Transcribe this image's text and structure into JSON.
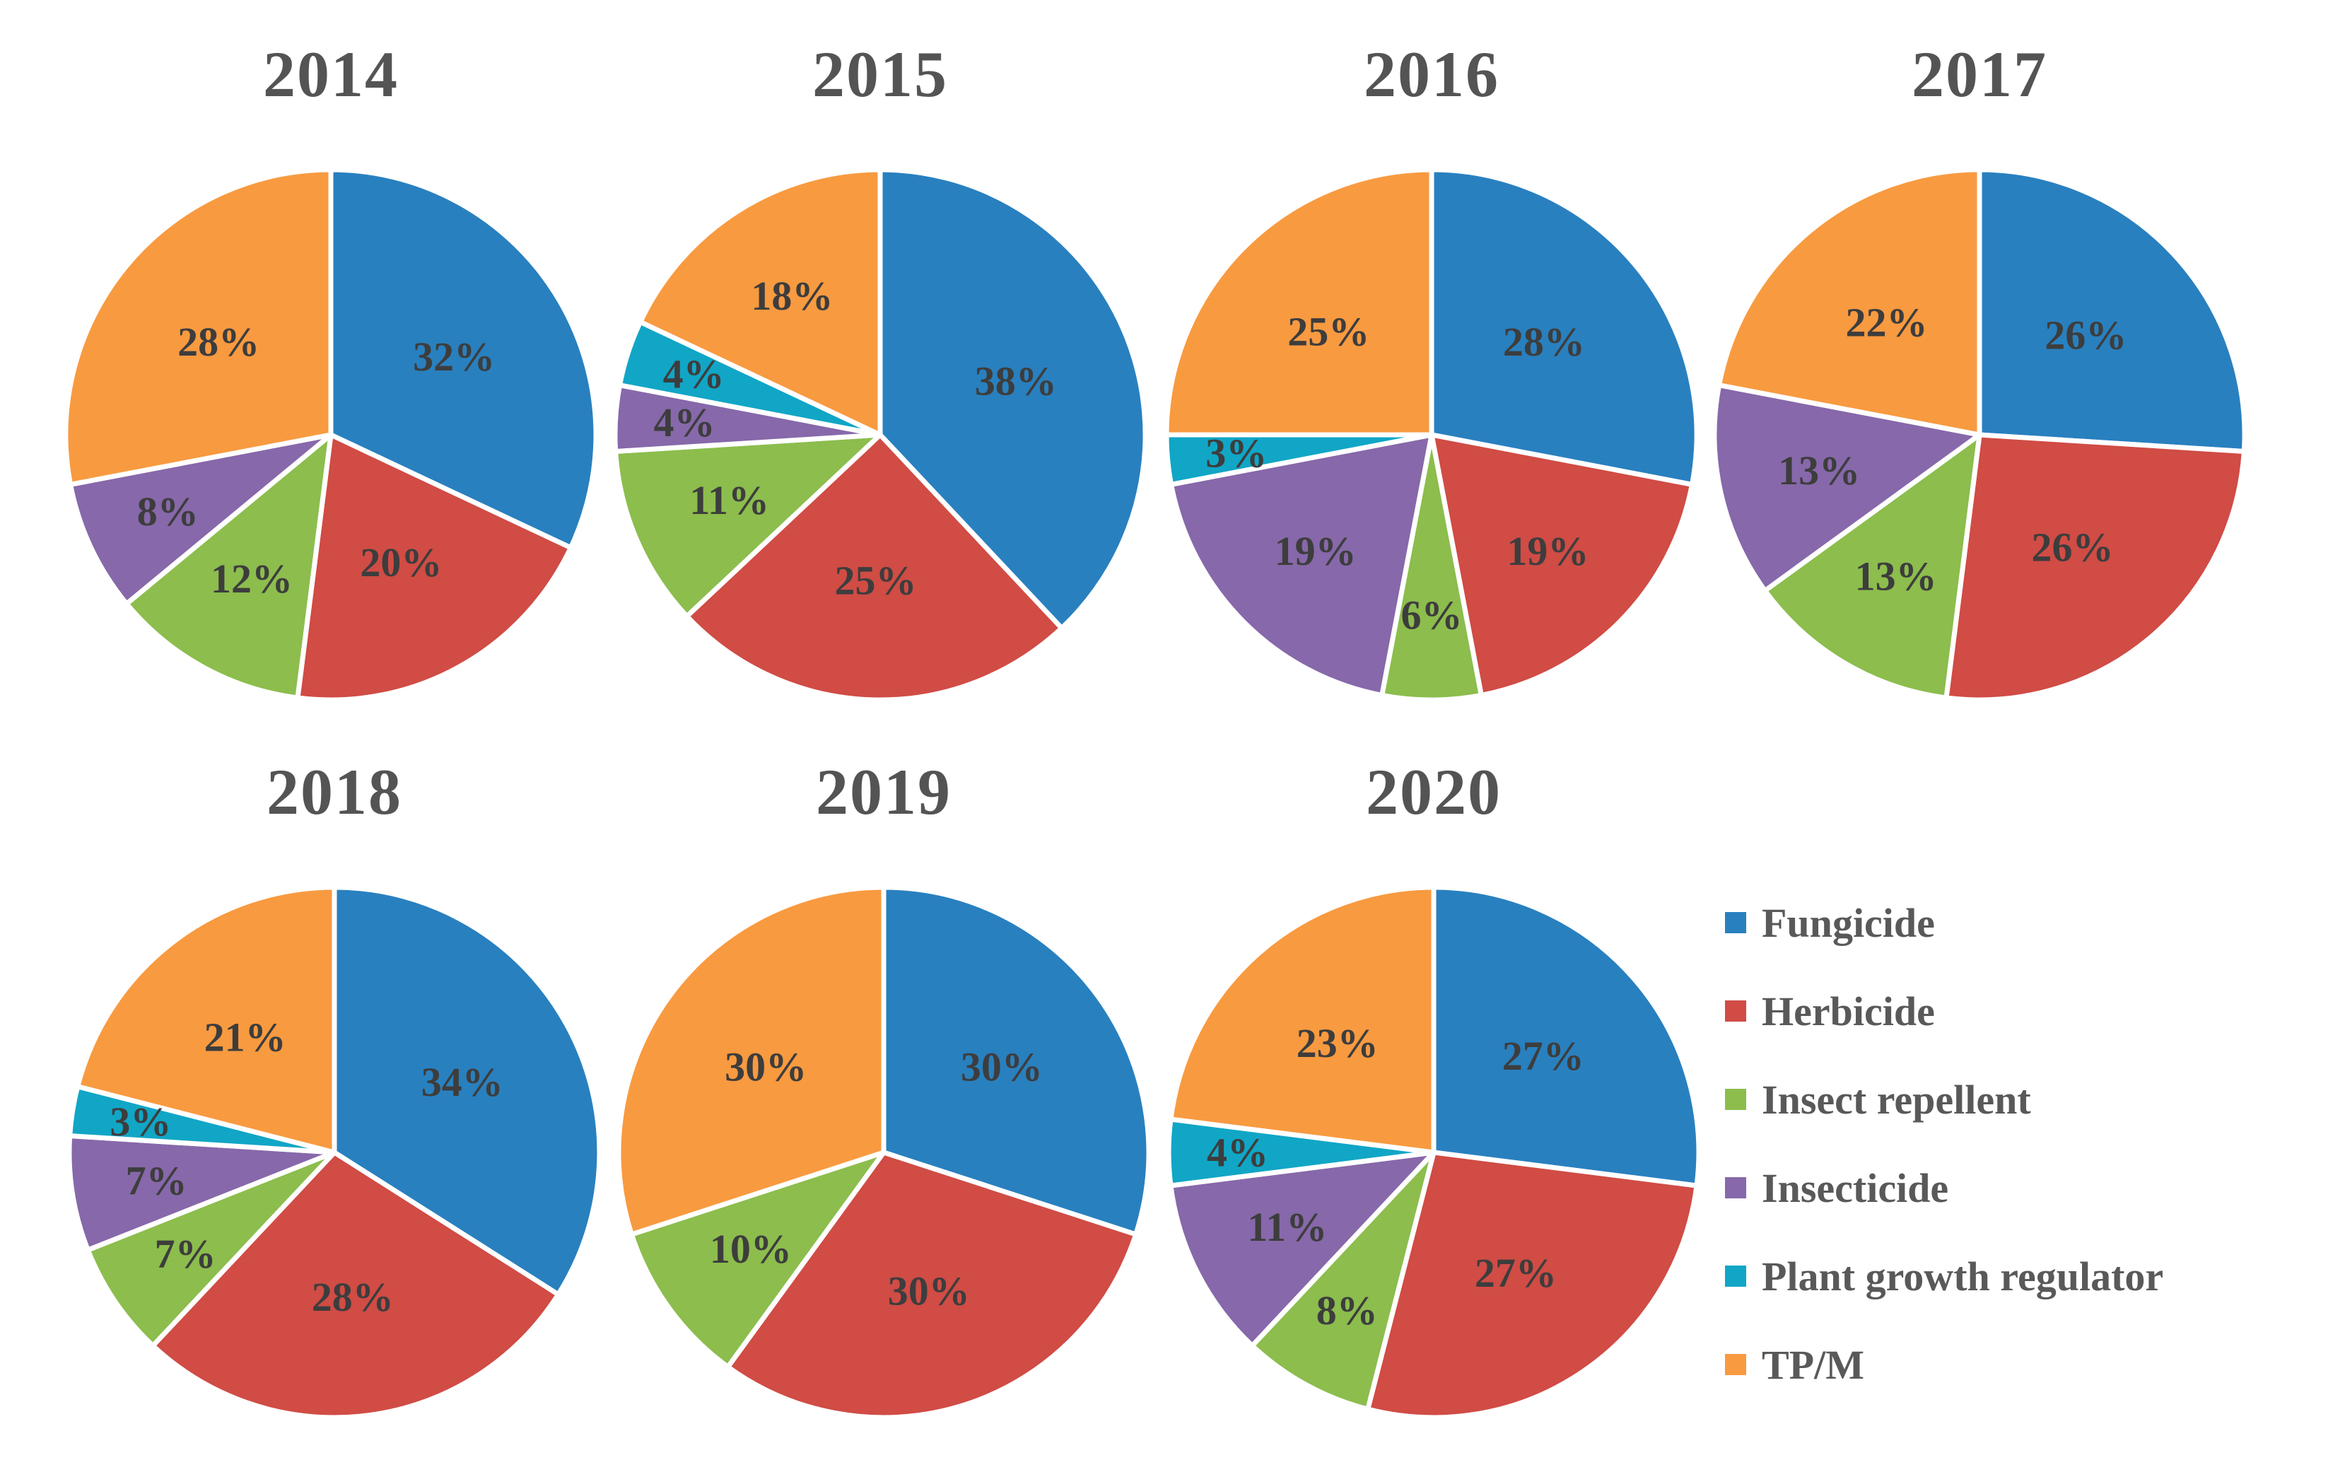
{
  "figure": {
    "background": "#ffffff",
    "title_color": "#545454",
    "label_color": "#3d3d3d",
    "legend_text_color": "#595959"
  },
  "legend": {
    "position": "right-bottom",
    "items": [
      {
        "label": "Fungicide",
        "color": "#2980BF"
      },
      {
        "label": "Herbicide",
        "color": "#D04C45"
      },
      {
        "label": "Insect repellent",
        "color": "#8CBD4D"
      },
      {
        "label": "Insecticide",
        "color": "#8768AA"
      },
      {
        "label": "Plant growth regulator",
        "color": "#11A6C6"
      },
      {
        "label": "TP/M",
        "color": "#F89A40"
      }
    ]
  },
  "chart_data": [
    {
      "type": "pie",
      "title": "2014",
      "unit": "%",
      "categories": [
        "Fungicide",
        "Herbicide",
        "Insect repellent",
        "Insecticide",
        "Plant growth regulator",
        "TP/M"
      ],
      "values": [
        32,
        20,
        12,
        8,
        0,
        28
      ],
      "start_angle_deg": 0,
      "direction": "clockwise"
    },
    {
      "type": "pie",
      "title": "2015",
      "unit": "%",
      "categories": [
        "Fungicide",
        "Herbicide",
        "Insect repellent",
        "Insecticide",
        "Plant growth regulator",
        "TP/M"
      ],
      "values": [
        38,
        25,
        11,
        4,
        4,
        18
      ],
      "start_angle_deg": 0,
      "direction": "clockwise"
    },
    {
      "type": "pie",
      "title": "2016",
      "unit": "%",
      "categories": [
        "Fungicide",
        "Herbicide",
        "Insect repellent",
        "Insecticide",
        "Plant growth regulator",
        "TP/M"
      ],
      "values": [
        28,
        19,
        6,
        19,
        3,
        25
      ],
      "start_angle_deg": 0,
      "direction": "clockwise"
    },
    {
      "type": "pie",
      "title": "2017",
      "unit": "%",
      "categories": [
        "Fungicide",
        "Herbicide",
        "Insect repellent",
        "Insecticide",
        "Plant growth regulator",
        "TP/M"
      ],
      "values": [
        26,
        26,
        13,
        13,
        0,
        22
      ],
      "start_angle_deg": 0,
      "direction": "clockwise"
    },
    {
      "type": "pie",
      "title": "2018",
      "unit": "%",
      "categories": [
        "Fungicide",
        "Herbicide",
        "Insect repellent",
        "Insecticide",
        "Plant growth regulator",
        "TP/M"
      ],
      "values": [
        34,
        28,
        7,
        7,
        3,
        21
      ],
      "start_angle_deg": 0,
      "direction": "clockwise"
    },
    {
      "type": "pie",
      "title": "2019",
      "unit": "%",
      "categories": [
        "Fungicide",
        "Herbicide",
        "Insect repellent",
        "Insecticide",
        "Plant growth regulator",
        "TP/M"
      ],
      "values": [
        30,
        30,
        10,
        0,
        0,
        30
      ],
      "start_angle_deg": 0,
      "direction": "clockwise"
    },
    {
      "type": "pie",
      "title": "2020",
      "unit": "%",
      "categories": [
        "Fungicide",
        "Herbicide",
        "Insect repellent",
        "Insecticide",
        "Plant growth regulator",
        "TP/M"
      ],
      "values": [
        27,
        27,
        8,
        11,
        4,
        23
      ],
      "start_angle_deg": 0,
      "direction": "clockwise"
    }
  ]
}
